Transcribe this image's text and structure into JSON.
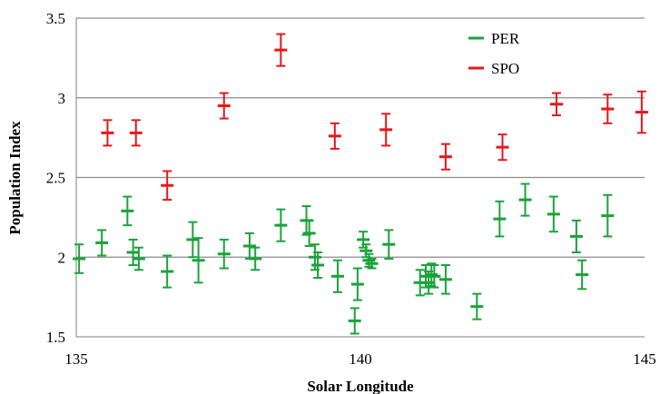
{
  "chart_data": {
    "type": "scatter",
    "xlabel": "Solar Longitude",
    "ylabel": "Population Index",
    "xlim": [
      135,
      145
    ],
    "ylim": [
      1.5,
      3.5
    ],
    "x_ticks": [
      "135",
      "140",
      "145"
    ],
    "y_ticks": [
      "1.5",
      "2",
      "2.5",
      "3",
      "3.5"
    ],
    "grid": "horizontal",
    "legend_position": "top-right",
    "series": [
      {
        "name": "PER",
        "color": "#1aa33a",
        "points": [
          {
            "x": 135.05,
            "y": 1.99,
            "err": 0.09
          },
          {
            "x": 135.45,
            "y": 2.09,
            "err": 0.08
          },
          {
            "x": 135.9,
            "y": 2.29,
            "err": 0.09
          },
          {
            "x": 136.0,
            "y": 2.03,
            "err": 0.08
          },
          {
            "x": 136.1,
            "y": 1.99,
            "err": 0.07
          },
          {
            "x": 136.6,
            "y": 1.91,
            "err": 0.1
          },
          {
            "x": 137.05,
            "y": 2.11,
            "err": 0.11
          },
          {
            "x": 137.15,
            "y": 1.98,
            "err": 0.14
          },
          {
            "x": 137.6,
            "y": 2.02,
            "err": 0.09
          },
          {
            "x": 138.05,
            "y": 2.07,
            "err": 0.08
          },
          {
            "x": 138.15,
            "y": 1.99,
            "err": 0.07
          },
          {
            "x": 138.6,
            "y": 2.2,
            "err": 0.1
          },
          {
            "x": 139.05,
            "y": 2.23,
            "err": 0.09
          },
          {
            "x": 139.1,
            "y": 2.15,
            "err": 0.08
          },
          {
            "x": 139.2,
            "y": 2.0,
            "err": 0.08
          },
          {
            "x": 139.25,
            "y": 1.95,
            "err": 0.08
          },
          {
            "x": 139.6,
            "y": 1.88,
            "err": 0.1
          },
          {
            "x": 139.9,
            "y": 1.6,
            "err": 0.08
          },
          {
            "x": 139.95,
            "y": 1.83,
            "err": 0.1
          },
          {
            "x": 140.05,
            "y": 2.11,
            "err": 0.05
          },
          {
            "x": 140.1,
            "y": 2.04,
            "err": 0.04
          },
          {
            "x": 140.15,
            "y": 1.98,
            "err": 0.04
          },
          {
            "x": 140.2,
            "y": 1.96,
            "err": 0.03
          },
          {
            "x": 140.5,
            "y": 2.08,
            "err": 0.09
          },
          {
            "x": 141.05,
            "y": 1.84,
            "err": 0.08
          },
          {
            "x": 141.15,
            "y": 1.88,
            "err": 0.07
          },
          {
            "x": 141.2,
            "y": 1.84,
            "err": 0.07
          },
          {
            "x": 141.25,
            "y": 1.89,
            "err": 0.07
          },
          {
            "x": 141.3,
            "y": 1.88,
            "err": 0.07
          },
          {
            "x": 141.5,
            "y": 1.86,
            "err": 0.09
          },
          {
            "x": 142.05,
            "y": 1.69,
            "err": 0.08
          },
          {
            "x": 142.45,
            "y": 2.24,
            "err": 0.11
          },
          {
            "x": 142.9,
            "y": 2.36,
            "err": 0.1
          },
          {
            "x": 143.4,
            "y": 2.27,
            "err": 0.11
          },
          {
            "x": 143.8,
            "y": 2.13,
            "err": 0.1
          },
          {
            "x": 143.9,
            "y": 1.89,
            "err": 0.09
          },
          {
            "x": 144.35,
            "y": 2.26,
            "err": 0.13
          }
        ]
      },
      {
        "name": "SPO",
        "color": "#e8171b",
        "points": [
          {
            "x": 135.55,
            "y": 2.78,
            "err": 0.08
          },
          {
            "x": 136.05,
            "y": 2.78,
            "err": 0.08
          },
          {
            "x": 136.6,
            "y": 2.45,
            "err": 0.09
          },
          {
            "x": 137.6,
            "y": 2.95,
            "err": 0.08
          },
          {
            "x": 138.6,
            "y": 3.3,
            "err": 0.1
          },
          {
            "x": 139.55,
            "y": 2.76,
            "err": 0.08
          },
          {
            "x": 140.45,
            "y": 2.8,
            "err": 0.1
          },
          {
            "x": 141.5,
            "y": 2.63,
            "err": 0.08
          },
          {
            "x": 142.5,
            "y": 2.69,
            "err": 0.08
          },
          {
            "x": 143.45,
            "y": 2.96,
            "err": 0.07
          },
          {
            "x": 144.35,
            "y": 2.93,
            "err": 0.09
          },
          {
            "x": 144.95,
            "y": 2.91,
            "err": 0.13
          }
        ]
      }
    ]
  }
}
